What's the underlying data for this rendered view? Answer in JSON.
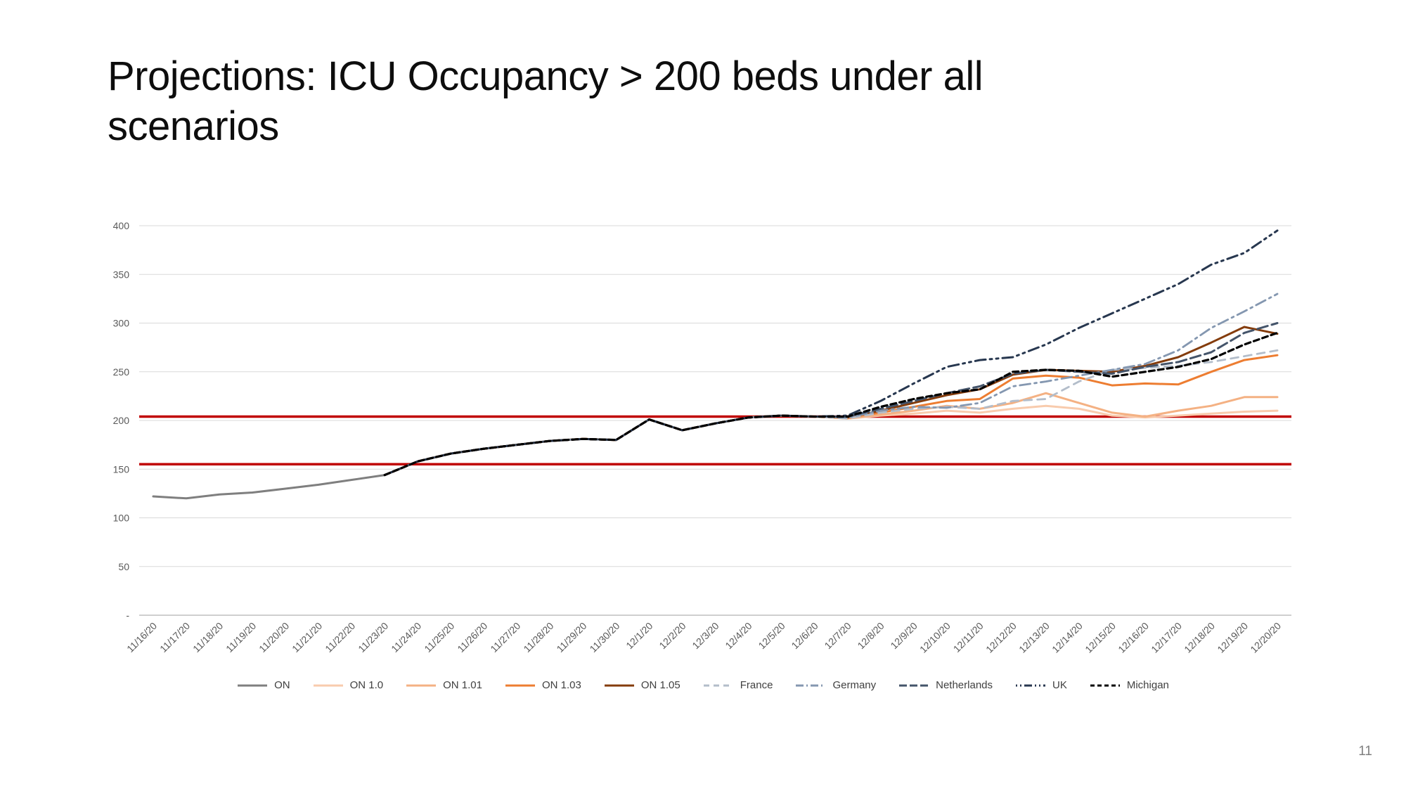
{
  "title": "Projections: ICU Occupancy > 200 beds under all scenarios",
  "page_number": "11",
  "chart_data": {
    "type": "line",
    "title": "",
    "xlabel": "",
    "ylabel": "",
    "ylim": [
      0,
      400
    ],
    "grid": true,
    "legend_position": "bottom",
    "yticks": [
      0,
      50,
      100,
      150,
      200,
      250,
      300,
      350,
      400
    ],
    "ytick_labels": [
      "-",
      "50",
      "100",
      "150",
      "200",
      "250",
      "300",
      "350",
      "400"
    ],
    "x_labels": [
      "11/16/20",
      "11/17/20",
      "11/18/20",
      "11/19/20",
      "11/20/20",
      "11/21/20",
      "11/22/20",
      "11/23/20",
      "11/24/20",
      "11/25/20",
      "11/26/20",
      "11/27/20",
      "11/28/20",
      "11/29/20",
      "11/30/20",
      "12/1/20",
      "12/2/20",
      "12/3/20",
      "12/4/20",
      "12/5/20",
      "12/6/20",
      "12/7/20",
      "12/8/20",
      "12/9/20",
      "12/10/20",
      "12/11/20",
      "12/12/20",
      "12/13/20",
      "12/14/20",
      "12/15/20",
      "12/16/20",
      "12/17/20",
      "12/18/20",
      "12/19/20",
      "12/20/20"
    ],
    "reference_lines": [
      {
        "name": "upper-threshold",
        "value": 204,
        "color": "#c00000"
      },
      {
        "name": "lower-threshold",
        "value": 155,
        "color": "#c00000"
      }
    ],
    "series": [
      {
        "name": "ON",
        "color": "#7f7f7f",
        "dash": "",
        "width": 3,
        "values": [
          122,
          120,
          124,
          126,
          130,
          134,
          139,
          144,
          158,
          166,
          171,
          175,
          179,
          181,
          180,
          201,
          190,
          197,
          203,
          205,
          204,
          null,
          null,
          null,
          null,
          null,
          null,
          null,
          null,
          null,
          null,
          null,
          null,
          null,
          null
        ]
      },
      {
        "name": "ON 1.0",
        "color": "#f8cbad",
        "dash": "",
        "width": 3,
        "values": [
          null,
          null,
          null,
          null,
          null,
          null,
          null,
          144,
          158,
          166,
          171,
          175,
          179,
          181,
          180,
          201,
          190,
          197,
          203,
          205,
          204,
          202,
          205,
          207,
          210,
          208,
          212,
          215,
          212,
          205,
          203,
          205,
          207,
          209,
          210
        ]
      },
      {
        "name": "ON 1.01",
        "color": "#f4b183",
        "dash": "",
        "width": 3,
        "values": [
          null,
          null,
          null,
          null,
          null,
          null,
          null,
          144,
          158,
          166,
          171,
          175,
          179,
          181,
          180,
          201,
          190,
          197,
          203,
          205,
          204,
          202,
          206,
          210,
          215,
          212,
          218,
          228,
          218,
          208,
          204,
          210,
          215,
          224,
          224
        ]
      },
      {
        "name": "ON 1.03",
        "color": "#ed7d31",
        "dash": "",
        "width": 3,
        "values": [
          null,
          null,
          null,
          null,
          null,
          null,
          null,
          144,
          158,
          166,
          171,
          175,
          179,
          181,
          180,
          201,
          190,
          197,
          203,
          205,
          204,
          203,
          208,
          214,
          220,
          222,
          243,
          246,
          244,
          236,
          238,
          237,
          250,
          262,
          267
        ]
      },
      {
        "name": "ON 1.05",
        "color": "#843c0c",
        "dash": "",
        "width": 3,
        "values": [
          null,
          null,
          null,
          null,
          null,
          null,
          null,
          144,
          158,
          166,
          171,
          175,
          179,
          181,
          180,
          201,
          190,
          197,
          203,
          205,
          204,
          203,
          210,
          218,
          226,
          232,
          247,
          252,
          251,
          250,
          256,
          265,
          280,
          296,
          289
        ]
      },
      {
        "name": "France",
        "color": "#b3bdca",
        "dash": "11 8",
        "width": 2.8,
        "values": [
          null,
          null,
          null,
          null,
          null,
          null,
          null,
          144,
          158,
          166,
          171,
          175,
          179,
          181,
          180,
          201,
          190,
          197,
          203,
          205,
          204,
          202,
          208,
          212,
          214,
          212,
          220,
          222,
          240,
          252,
          254,
          256,
          260,
          266,
          272
        ]
      },
      {
        "name": "Germany",
        "color": "#8497b0",
        "dash": "15 6 3 6",
        "width": 2.8,
        "values": [
          null,
          null,
          null,
          null,
          null,
          null,
          null,
          144,
          158,
          166,
          171,
          175,
          179,
          181,
          180,
          201,
          190,
          197,
          203,
          205,
          204,
          203,
          210,
          214,
          213,
          218,
          235,
          240,
          246,
          252,
          258,
          272,
          295,
          312,
          330
        ]
      },
      {
        "name": "Netherlands",
        "color": "#44546a",
        "dash": "15 6",
        "width": 3,
        "values": [
          null,
          null,
          null,
          null,
          null,
          null,
          null,
          144,
          158,
          166,
          171,
          175,
          179,
          181,
          180,
          201,
          190,
          197,
          203,
          205,
          204,
          204,
          212,
          220,
          228,
          235,
          248,
          252,
          250,
          248,
          255,
          260,
          270,
          290,
          300
        ]
      },
      {
        "name": "UK",
        "color": "#27374f",
        "dash": "3 6 3 6 15 6",
        "width": 3,
        "values": [
          null,
          null,
          null,
          null,
          null,
          null,
          null,
          144,
          158,
          166,
          171,
          175,
          179,
          181,
          180,
          201,
          190,
          197,
          203,
          205,
          204,
          205,
          220,
          238,
          255,
          262,
          265,
          278,
          295,
          310,
          325,
          340,
          360,
          372,
          395
        ]
      },
      {
        "name": "Michigan",
        "color": "#000000",
        "dash": "8 5",
        "width": 3.2,
        "values": [
          null,
          null,
          null,
          null,
          null,
          null,
          null,
          144,
          158,
          166,
          171,
          175,
          179,
          181,
          180,
          201,
          190,
          197,
          203,
          205,
          204,
          204,
          214,
          222,
          228,
          232,
          250,
          252,
          251,
          245,
          250,
          255,
          263,
          278,
          290
        ]
      }
    ]
  }
}
